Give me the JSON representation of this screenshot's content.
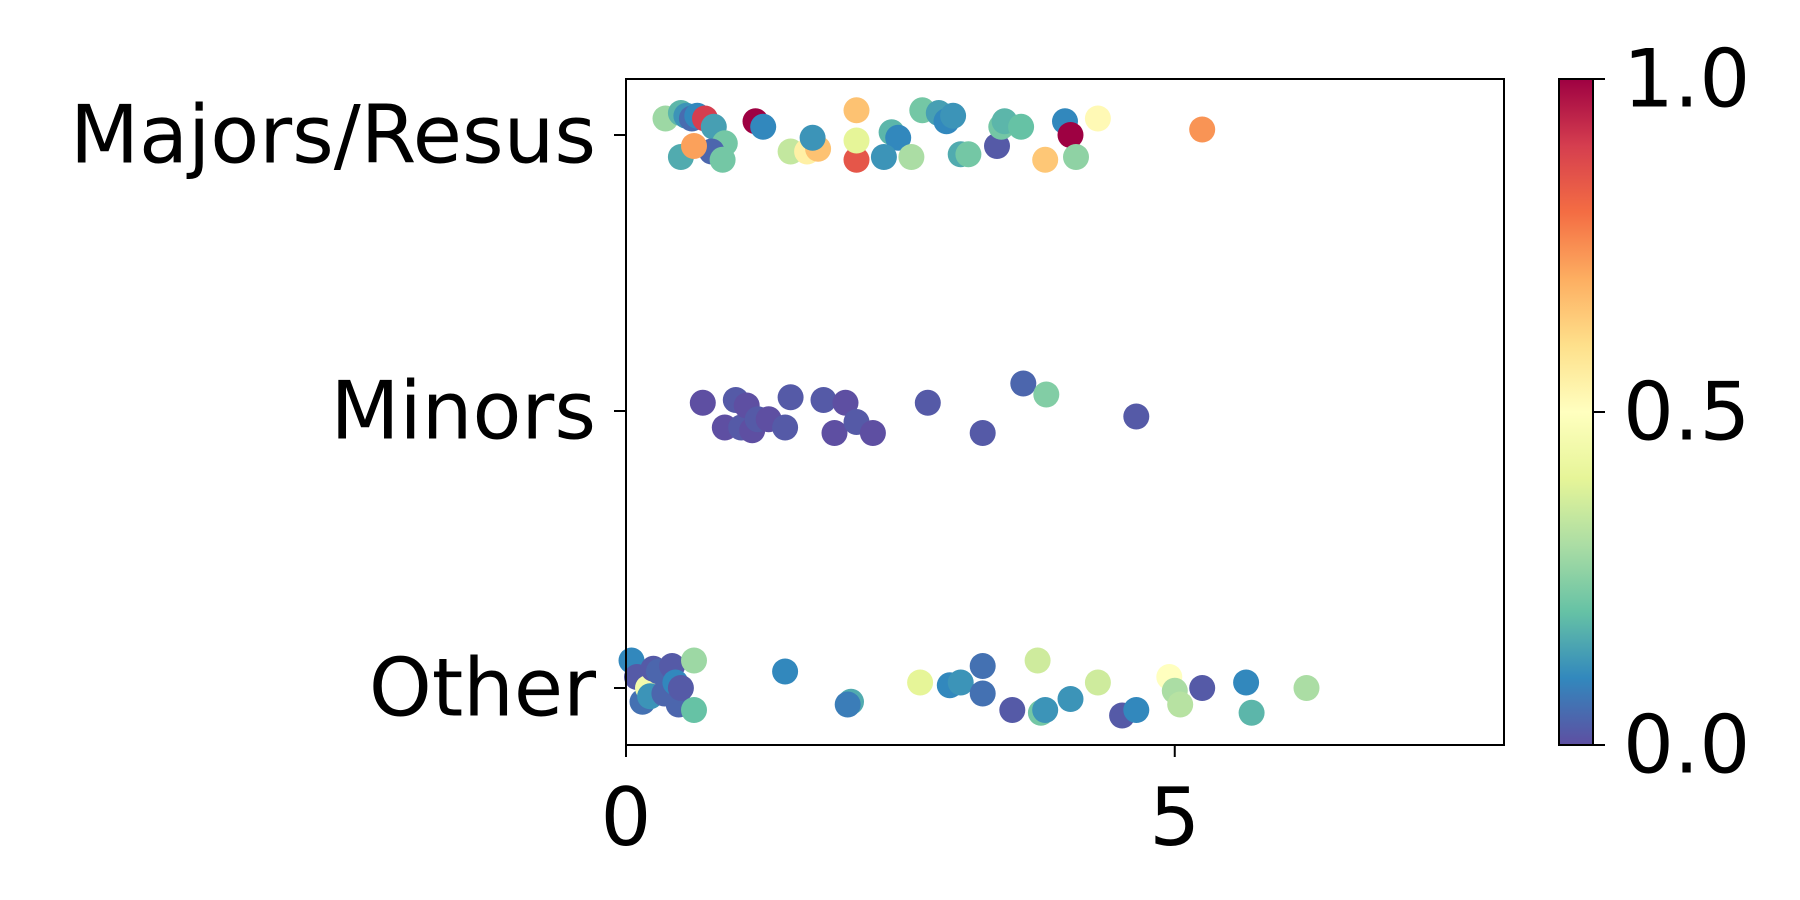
{
  "chart_data": {
    "type": "scatter",
    "title": "",
    "xlabel": "",
    "ylabel": "",
    "xlim": [
      0,
      8
    ],
    "x_ticks": [
      {
        "value": 0,
        "label": "0"
      },
      {
        "value": 5,
        "label": "5"
      }
    ],
    "categories": [
      "Majors/Resus",
      "Minors",
      "Other"
    ],
    "grid": false,
    "colorbar": {
      "colormap": "Spectral_r",
      "range": [
        0,
        1
      ],
      "ticks": [
        {
          "value": 0.0,
          "label": "0.0"
        },
        {
          "value": 0.5,
          "label": "0.5"
        },
        {
          "value": 1.0,
          "label": "1.0"
        }
      ],
      "stops": [
        "#5e4fa2",
        "#3288bd",
        "#66c2a5",
        "#abdda4",
        "#e6f598",
        "#ffffbf",
        "#fee08b",
        "#fdae61",
        "#f46d43",
        "#d53e4f",
        "#9e0142"
      ]
    },
    "series": [
      {
        "category": "Majors/Resus",
        "points": [
          {
            "x": 0.36,
            "jitter": 0.06,
            "c": 0.28
          },
          {
            "x": 0.5,
            "jitter": 0.08,
            "c": 0.18
          },
          {
            "x": 0.55,
            "jitter": 0.07,
            "c": 0.12
          },
          {
            "x": 0.6,
            "jitter": 0.06,
            "c": 0.05
          },
          {
            "x": 0.65,
            "jitter": 0.07,
            "c": 0.1
          },
          {
            "x": 0.72,
            "jitter": 0.06,
            "c": 0.9
          },
          {
            "x": 0.8,
            "jitter": 0.03,
            "c": 0.14
          },
          {
            "x": 0.9,
            "jitter": -0.03,
            "c": 0.22
          },
          {
            "x": 0.5,
            "jitter": -0.08,
            "c": 0.16
          },
          {
            "x": 0.78,
            "jitter": -0.06,
            "c": 0.04
          },
          {
            "x": 0.88,
            "jitter": -0.09,
            "c": 0.22
          },
          {
            "x": 0.62,
            "jitter": -0.04,
            "c": 0.72
          },
          {
            "x": 1.18,
            "jitter": 0.05,
            "c": 1.0
          },
          {
            "x": 1.25,
            "jitter": 0.03,
            "c": 0.1
          },
          {
            "x": 1.5,
            "jitter": -0.06,
            "c": 0.34
          },
          {
            "x": 1.65,
            "jitter": -0.06,
            "c": 0.55
          },
          {
            "x": 1.75,
            "jitter": -0.05,
            "c": 0.66
          },
          {
            "x": 1.7,
            "jitter": -0.01,
            "c": 0.12
          },
          {
            "x": 2.1,
            "jitter": 0.09,
            "c": 0.66
          },
          {
            "x": 2.1,
            "jitter": -0.09,
            "c": 0.85
          },
          {
            "x": 2.1,
            "jitter": -0.02,
            "c": 0.4
          },
          {
            "x": 2.42,
            "jitter": 0.01,
            "c": 0.18
          },
          {
            "x": 2.48,
            "jitter": -0.01,
            "c": 0.1
          },
          {
            "x": 2.35,
            "jitter": -0.08,
            "c": 0.12
          },
          {
            "x": 2.6,
            "jitter": -0.08,
            "c": 0.3
          },
          {
            "x": 2.7,
            "jitter": 0.09,
            "c": 0.22
          },
          {
            "x": 2.85,
            "jitter": 0.08,
            "c": 0.14
          },
          {
            "x": 2.92,
            "jitter": 0.05,
            "c": 0.1
          },
          {
            "x": 2.98,
            "jitter": 0.07,
            "c": 0.12
          },
          {
            "x": 3.05,
            "jitter": -0.07,
            "c": 0.16
          },
          {
            "x": 3.12,
            "jitter": -0.07,
            "c": 0.22
          },
          {
            "x": 3.38,
            "jitter": -0.04,
            "c": 0.02
          },
          {
            "x": 3.42,
            "jitter": 0.03,
            "c": 0.22
          },
          {
            "x": 3.45,
            "jitter": 0.05,
            "c": 0.18
          },
          {
            "x": 3.6,
            "jitter": 0.03,
            "c": 0.2
          },
          {
            "x": 3.82,
            "jitter": -0.09,
            "c": 0.65
          },
          {
            "x": 4.0,
            "jitter": 0.05,
            "c": 0.1
          },
          {
            "x": 4.05,
            "jitter": 0.0,
            "c": 1.0
          },
          {
            "x": 4.1,
            "jitter": -0.08,
            "c": 0.26
          },
          {
            "x": 4.3,
            "jitter": 0.06,
            "c": 0.52
          },
          {
            "x": 5.25,
            "jitter": 0.02,
            "c": 0.74
          }
        ]
      },
      {
        "category": "Minors",
        "points": [
          {
            "x": 0.7,
            "jitter": 0.03,
            "c": 0.0
          },
          {
            "x": 0.9,
            "jitter": -0.06,
            "c": 0.0
          },
          {
            "x": 1.0,
            "jitter": 0.04,
            "c": 0.02
          },
          {
            "x": 1.05,
            "jitter": -0.06,
            "c": 0.02
          },
          {
            "x": 1.1,
            "jitter": 0.02,
            "c": 0.0
          },
          {
            "x": 1.15,
            "jitter": -0.07,
            "c": 0.0
          },
          {
            "x": 1.2,
            "jitter": -0.03,
            "c": 0.02
          },
          {
            "x": 1.3,
            "jitter": -0.03,
            "c": 0.0
          },
          {
            "x": 1.45,
            "jitter": -0.06,
            "c": 0.02
          },
          {
            "x": 1.5,
            "jitter": 0.05,
            "c": 0.02
          },
          {
            "x": 1.8,
            "jitter": 0.04,
            "c": 0.02
          },
          {
            "x": 1.9,
            "jitter": -0.08,
            "c": 0.0
          },
          {
            "x": 2.0,
            "jitter": 0.03,
            "c": 0.0
          },
          {
            "x": 2.1,
            "jitter": -0.04,
            "c": 0.02
          },
          {
            "x": 2.25,
            "jitter": -0.08,
            "c": 0.0
          },
          {
            "x": 2.75,
            "jitter": 0.03,
            "c": 0.02
          },
          {
            "x": 3.25,
            "jitter": -0.08,
            "c": 0.02
          },
          {
            "x": 3.62,
            "jitter": 0.1,
            "c": 0.04
          },
          {
            "x": 3.83,
            "jitter": 0.06,
            "c": 0.24
          },
          {
            "x": 4.65,
            "jitter": -0.02,
            "c": 0.02
          }
        ]
      },
      {
        "category": "Other",
        "points": [
          {
            "x": 0.05,
            "jitter": 0.1,
            "c": 0.1
          },
          {
            "x": 0.1,
            "jitter": 0.04,
            "c": 0.02
          },
          {
            "x": 0.15,
            "jitter": -0.05,
            "c": 0.06
          },
          {
            "x": 0.2,
            "jitter": 0.0,
            "c": 0.45
          },
          {
            "x": 0.22,
            "jitter": -0.03,
            "c": 0.12
          },
          {
            "x": 0.25,
            "jitter": 0.07,
            "c": 0.02
          },
          {
            "x": 0.3,
            "jitter": 0.06,
            "c": 0.04
          },
          {
            "x": 0.35,
            "jitter": -0.02,
            "c": 0.04
          },
          {
            "x": 0.42,
            "jitter": 0.08,
            "c": 0.02
          },
          {
            "x": 0.45,
            "jitter": 0.02,
            "c": 0.1
          },
          {
            "x": 0.48,
            "jitter": -0.06,
            "c": 0.04
          },
          {
            "x": 0.5,
            "jitter": 0.0,
            "c": 0.02
          },
          {
            "x": 0.62,
            "jitter": 0.1,
            "c": 0.28
          },
          {
            "x": 0.62,
            "jitter": -0.08,
            "c": 0.2
          },
          {
            "x": 1.45,
            "jitter": 0.06,
            "c": 0.1
          },
          {
            "x": 2.05,
            "jitter": -0.05,
            "c": 0.16
          },
          {
            "x": 2.02,
            "jitter": -0.06,
            "c": 0.08
          },
          {
            "x": 2.68,
            "jitter": 0.02,
            "c": 0.4
          },
          {
            "x": 2.95,
            "jitter": 0.01,
            "c": 0.1
          },
          {
            "x": 3.05,
            "jitter": 0.02,
            "c": 0.12
          },
          {
            "x": 3.25,
            "jitter": 0.08,
            "c": 0.06
          },
          {
            "x": 3.25,
            "jitter": -0.02,
            "c": 0.06
          },
          {
            "x": 3.52,
            "jitter": -0.08,
            "c": 0.02
          },
          {
            "x": 3.75,
            "jitter": 0.1,
            "c": 0.36
          },
          {
            "x": 3.78,
            "jitter": -0.09,
            "c": 0.22
          },
          {
            "x": 3.82,
            "jitter": -0.08,
            "c": 0.12
          },
          {
            "x": 4.05,
            "jitter": -0.04,
            "c": 0.12
          },
          {
            "x": 4.3,
            "jitter": 0.02,
            "c": 0.36
          },
          {
            "x": 4.52,
            "jitter": -0.1,
            "c": 0.02
          },
          {
            "x": 4.65,
            "jitter": -0.08,
            "c": 0.1
          },
          {
            "x": 4.95,
            "jitter": 0.04,
            "c": 0.5
          },
          {
            "x": 5.0,
            "jitter": -0.01,
            "c": 0.3
          },
          {
            "x": 5.05,
            "jitter": -0.06,
            "c": 0.32
          },
          {
            "x": 5.25,
            "jitter": 0.0,
            "c": 0.02
          },
          {
            "x": 5.65,
            "jitter": 0.02,
            "c": 0.1
          },
          {
            "x": 5.7,
            "jitter": -0.09,
            "c": 0.18
          },
          {
            "x": 6.2,
            "jitter": 0.0,
            "c": 0.3
          }
        ]
      }
    ]
  }
}
